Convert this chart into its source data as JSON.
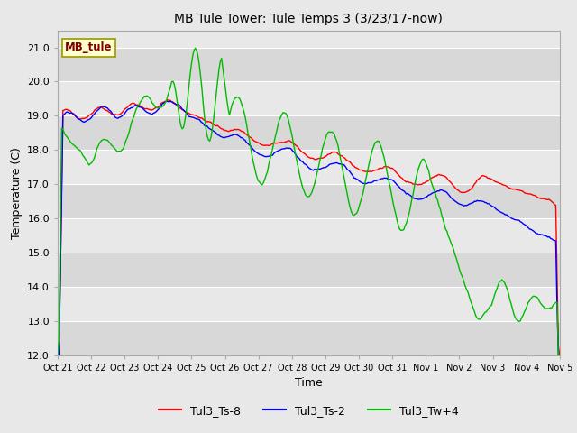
{
  "title": "MB Tule Tower: Tule Temps 3 (3/23/17-now)",
  "xlabel": "Time",
  "ylabel": "Temperature (C)",
  "ylim": [
    12.0,
    21.5
  ],
  "yticks": [
    12.0,
    13.0,
    14.0,
    15.0,
    16.0,
    17.0,
    18.0,
    19.0,
    20.0,
    21.0
  ],
  "xtick_labels": [
    "Oct 21",
    "Oct 22",
    "Oct 23",
    "Oct 24",
    "Oct 25",
    "Oct 26",
    "Oct 27",
    "Oct 28",
    "Oct 29",
    "Oct 30",
    "Oct 31",
    "Nov 1",
    "Nov 2",
    "Nov 3",
    "Nov 4",
    "Nov 5"
  ],
  "background_color": "#e8e8e8",
  "plot_bg_color": "#e8e8e8",
  "grid_color": "#ffffff",
  "legend_box_color": "#ffffcc",
  "legend_box_edge": "#999900",
  "legend_text_color": "#800000",
  "line_red": "#ff0000",
  "line_blue": "#0000ff",
  "line_green": "#00bb00",
  "legend_labels": [
    "Tul3_Ts-8",
    "Tul3_Ts-2",
    "Tul3_Tw+4"
  ],
  "inset_label": "MB_tule"
}
